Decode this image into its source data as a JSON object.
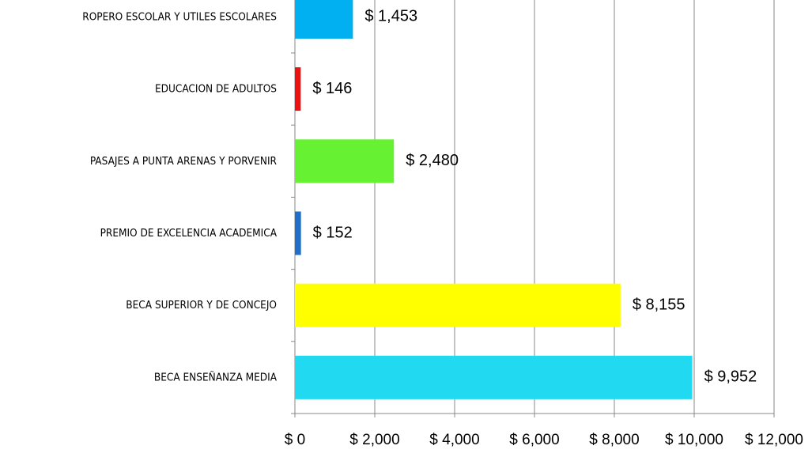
{
  "chart_data": {
    "type": "bar",
    "orientation": "horizontal",
    "categories": [
      "ROPERO ESCOLAR Y UTILES ESCOLARES",
      "EDUCACION DE ADULTOS",
      "PASAJES A PUNTA ARENAS Y PORVENIR",
      "PREMIO DE EXCELENCIA ACADEMICA",
      "BECA SUPERIOR Y DE CONCEJO",
      "BECA ENSEÑANZA MEDIA"
    ],
    "values": [
      1453,
      146,
      2480,
      152,
      8155,
      9952
    ],
    "value_labels": [
      "$ 1,453",
      "$ 146",
      "$ 2,480",
      "$ 152",
      "$ 8,155",
      "$ 9,952"
    ],
    "colors": [
      "#00b0f0",
      "#ee1111",
      "#66f233",
      "#1f6fc8",
      "#ffff00",
      "#22d9f2"
    ],
    "xlim": [
      0,
      12000
    ],
    "xticks": [
      {
        "value": 0,
        "label": "$ 0"
      },
      {
        "value": 2000,
        "label": "$ 2,000"
      },
      {
        "value": 4000,
        "label": "$ 4,000"
      },
      {
        "value": 6000,
        "label": "$ 6,000"
      },
      {
        "value": 8000,
        "label": "$ 8,000"
      },
      {
        "value": 10000,
        "label": "$ 10,000"
      },
      {
        "value": 12000,
        "label": "$ 12,000"
      }
    ],
    "grid": true
  }
}
